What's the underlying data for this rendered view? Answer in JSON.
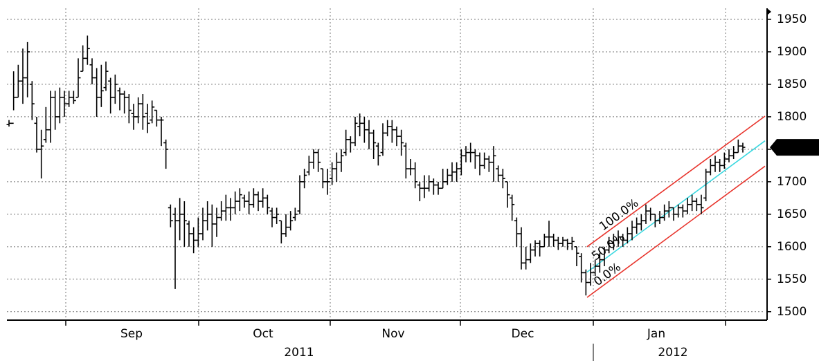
{
  "chart_data": {
    "type": "ohlc",
    "month_labels": [
      "Sep",
      "Oct",
      "Nov",
      "Dec",
      "Jan"
    ],
    "year_labels": [
      "2011",
      "2012"
    ],
    "ylim": [
      1487,
      1967
    ],
    "yticks": [
      1500,
      1550,
      1600,
      1650,
      1700,
      1750,
      1800,
      1850,
      1900,
      1950
    ],
    "grid": true,
    "color": "#000000",
    "last_price": {
      "value": 1753,
      "label": "1753."
    },
    "channels": [
      {
        "name": "100.0%",
        "color": "#e8342c",
        "values": [
          1600,
          1801
        ]
      },
      {
        "name": "50.0%",
        "color": "#3ad8e0",
        "values": [
          1561,
          1763
        ]
      },
      {
        "name": "0.0%",
        "color": "#e8342c",
        "values": [
          1522,
          1724
        ]
      }
    ],
    "bars": [
      [
        1788,
        1795,
        1785,
        1790
      ],
      [
        1790,
        1870,
        1810,
        1830
      ],
      [
        1830,
        1880,
        1830,
        1855
      ],
      [
        1855,
        1905,
        1820,
        1860
      ],
      [
        1860,
        1915,
        1830,
        1900
      ],
      [
        1850,
        1855,
        1795,
        1820
      ],
      [
        1790,
        1800,
        1745,
        1750
      ],
      [
        1750,
        1780,
        1705,
        1755
      ],
      [
        1765,
        1815,
        1760,
        1780
      ],
      [
        1780,
        1840,
        1760,
        1830
      ],
      [
        1830,
        1840,
        1780,
        1800
      ],
      [
        1800,
        1845,
        1790,
        1830
      ],
      [
        1830,
        1840,
        1800,
        1820
      ],
      [
        1820,
        1840,
        1815,
        1830
      ],
      [
        1830,
        1840,
        1820,
        1825
      ],
      [
        1830,
        1890,
        1830,
        1860
      ],
      [
        1870,
        1910,
        1870,
        1890
      ],
      [
        1890,
        1925,
        1880,
        1905
      ],
      [
        1880,
        1890,
        1850,
        1860
      ],
      [
        1860,
        1875,
        1800,
        1830
      ],
      [
        1830,
        1880,
        1815,
        1840
      ],
      [
        1845,
        1885,
        1840,
        1870
      ],
      [
        1855,
        1860,
        1805,
        1830
      ],
      [
        1830,
        1865,
        1820,
        1850
      ],
      [
        1840,
        1845,
        1810,
        1835
      ],
      [
        1835,
        1840,
        1805,
        1830
      ],
      [
        1830,
        1835,
        1790,
        1810
      ],
      [
        1805,
        1820,
        1780,
        1800
      ],
      [
        1800,
        1830,
        1790,
        1820
      ],
      [
        1820,
        1835,
        1780,
        1800
      ],
      [
        1805,
        1820,
        1775,
        1790
      ],
      [
        1795,
        1825,
        1790,
        1815
      ],
      [
        1810,
        1810,
        1785,
        1795
      ],
      [
        1795,
        1800,
        1755,
        1795
      ],
      [
        1760,
        1765,
        1720,
        1750
      ],
      [
        1660,
        1665,
        1630,
        1640
      ],
      [
        1650,
        1660,
        1535,
        1640
      ],
      [
        1640,
        1675,
        1610,
        1650
      ],
      [
        1650,
        1670,
        1600,
        1640
      ],
      [
        1635,
        1640,
        1600,
        1620
      ],
      [
        1620,
        1630,
        1590,
        1610
      ],
      [
        1610,
        1645,
        1600,
        1620
      ],
      [
        1620,
        1660,
        1610,
        1640
      ],
      [
        1640,
        1670,
        1625,
        1650
      ],
      [
        1650,
        1665,
        1600,
        1635
      ],
      [
        1635,
        1660,
        1615,
        1645
      ],
      [
        1645,
        1670,
        1640,
        1655
      ],
      [
        1655,
        1680,
        1640,
        1660
      ],
      [
        1660,
        1675,
        1640,
        1660
      ],
      [
        1660,
        1685,
        1650,
        1670
      ],
      [
        1670,
        1690,
        1655,
        1680
      ],
      [
        1675,
        1680,
        1660,
        1670
      ],
      [
        1670,
        1685,
        1650,
        1665
      ],
      [
        1665,
        1690,
        1660,
        1680
      ],
      [
        1680,
        1685,
        1655,
        1670
      ],
      [
        1670,
        1690,
        1660,
        1675
      ],
      [
        1675,
        1680,
        1650,
        1660
      ],
      [
        1655,
        1660,
        1630,
        1645
      ],
      [
        1645,
        1660,
        1635,
        1650
      ],
      [
        1640,
        1640,
        1605,
        1620
      ],
      [
        1620,
        1650,
        1615,
        1630
      ],
      [
        1630,
        1655,
        1625,
        1640
      ],
      [
        1645,
        1660,
        1640,
        1650
      ],
      [
        1655,
        1710,
        1650,
        1700
      ],
      [
        1700,
        1720,
        1690,
        1710
      ],
      [
        1715,
        1740,
        1710,
        1730
      ],
      [
        1730,
        1750,
        1720,
        1745
      ],
      [
        1745,
        1750,
        1715,
        1730
      ],
      [
        1720,
        1720,
        1690,
        1700
      ],
      [
        1700,
        1720,
        1680,
        1700
      ],
      [
        1705,
        1730,
        1695,
        1720
      ],
      [
        1720,
        1745,
        1700,
        1730
      ],
      [
        1730,
        1750,
        1715,
        1740
      ],
      [
        1745,
        1780,
        1740,
        1765
      ],
      [
        1765,
        1770,
        1745,
        1760
      ],
      [
        1760,
        1800,
        1755,
        1790
      ],
      [
        1785,
        1805,
        1770,
        1790
      ],
      [
        1790,
        1800,
        1760,
        1780
      ],
      [
        1780,
        1795,
        1750,
        1775
      ],
      [
        1775,
        1780,
        1735,
        1760
      ],
      [
        1755,
        1760,
        1725,
        1740
      ],
      [
        1745,
        1790,
        1740,
        1775
      ],
      [
        1775,
        1795,
        1770,
        1785
      ],
      [
        1785,
        1795,
        1760,
        1780
      ],
      [
        1780,
        1785,
        1755,
        1770
      ],
      [
        1770,
        1780,
        1740,
        1760
      ],
      [
        1755,
        1760,
        1705,
        1720
      ],
      [
        1720,
        1735,
        1710,
        1720
      ],
      [
        1720,
        1730,
        1690,
        1700
      ],
      [
        1695,
        1700,
        1670,
        1690
      ],
      [
        1690,
        1710,
        1675,
        1690
      ],
      [
        1690,
        1710,
        1685,
        1700
      ],
      [
        1700,
        1705,
        1680,
        1695
      ],
      [
        1695,
        1700,
        1680,
        1690
      ],
      [
        1690,
        1720,
        1690,
        1700
      ],
      [
        1700,
        1720,
        1695,
        1710
      ],
      [
        1710,
        1730,
        1700,
        1715
      ],
      [
        1715,
        1730,
        1700,
        1720
      ],
      [
        1720,
        1750,
        1710,
        1740
      ],
      [
        1740,
        1755,
        1730,
        1745
      ],
      [
        1745,
        1760,
        1730,
        1745
      ],
      [
        1745,
        1750,
        1720,
        1740
      ],
      [
        1740,
        1745,
        1710,
        1725
      ],
      [
        1725,
        1745,
        1720,
        1735
      ],
      [
        1735,
        1740,
        1715,
        1730
      ],
      [
        1730,
        1755,
        1700,
        1740
      ],
      [
        1720,
        1725,
        1700,
        1710
      ],
      [
        1710,
        1720,
        1690,
        1705
      ],
      [
        1700,
        1700,
        1660,
        1680
      ],
      [
        1675,
        1680,
        1640,
        1665
      ],
      [
        1640,
        1645,
        1600,
        1620
      ],
      [
        1620,
        1630,
        1565,
        1575
      ],
      [
        1575,
        1600,
        1565,
        1580
      ],
      [
        1580,
        1605,
        1575,
        1595
      ],
      [
        1595,
        1610,
        1585,
        1605
      ],
      [
        1605,
        1610,
        1585,
        1600
      ],
      [
        1600,
        1620,
        1600,
        1615
      ],
      [
        1615,
        1640,
        1600,
        1615
      ],
      [
        1615,
        1620,
        1600,
        1610
      ],
      [
        1610,
        1615,
        1595,
        1605
      ],
      [
        1605,
        1615,
        1600,
        1610
      ],
      [
        1610,
        1612,
        1595,
        1605
      ],
      [
        1605,
        1615,
        1595,
        1608
      ],
      [
        1600,
        1600,
        1570,
        1590
      ],
      [
        1585,
        1590,
        1545,
        1560
      ],
      [
        1560,
        1565,
        1525,
        1545
      ],
      [
        1545,
        1575,
        1540,
        1560
      ],
      [
        1560,
        1580,
        1555,
        1570
      ],
      [
        1570,
        1590,
        1560,
        1580
      ],
      [
        1580,
        1600,
        1570,
        1595
      ],
      [
        1595,
        1615,
        1590,
        1605
      ],
      [
        1605,
        1620,
        1595,
        1610
      ],
      [
        1610,
        1625,
        1600,
        1615
      ],
      [
        1615,
        1620,
        1600,
        1610
      ],
      [
        1610,
        1630,
        1605,
        1620
      ],
      [
        1620,
        1640,
        1610,
        1630
      ],
      [
        1630,
        1645,
        1620,
        1635
      ],
      [
        1635,
        1650,
        1625,
        1640
      ],
      [
        1640,
        1665,
        1635,
        1655
      ],
      [
        1655,
        1660,
        1640,
        1650
      ],
      [
        1650,
        1650,
        1630,
        1640
      ],
      [
        1640,
        1655,
        1635,
        1645
      ],
      [
        1645,
        1665,
        1640,
        1655
      ],
      [
        1655,
        1670,
        1645,
        1660
      ],
      [
        1660,
        1660,
        1640,
        1650
      ],
      [
        1650,
        1665,
        1645,
        1660
      ],
      [
        1660,
        1665,
        1645,
        1655
      ],
      [
        1655,
        1675,
        1650,
        1665
      ],
      [
        1665,
        1680,
        1655,
        1670
      ],
      [
        1670,
        1675,
        1655,
        1665
      ],
      [
        1665,
        1680,
        1650,
        1660
      ],
      [
        1675,
        1720,
        1670,
        1715
      ],
      [
        1715,
        1735,
        1710,
        1725
      ],
      [
        1725,
        1740,
        1715,
        1730
      ],
      [
        1730,
        1735,
        1715,
        1725
      ],
      [
        1725,
        1745,
        1720,
        1735
      ],
      [
        1735,
        1750,
        1730,
        1740
      ],
      [
        1740,
        1755,
        1735,
        1745
      ],
      [
        1745,
        1765,
        1745,
        1755
      ],
      [
        1755,
        1760,
        1745,
        1753
      ]
    ]
  }
}
